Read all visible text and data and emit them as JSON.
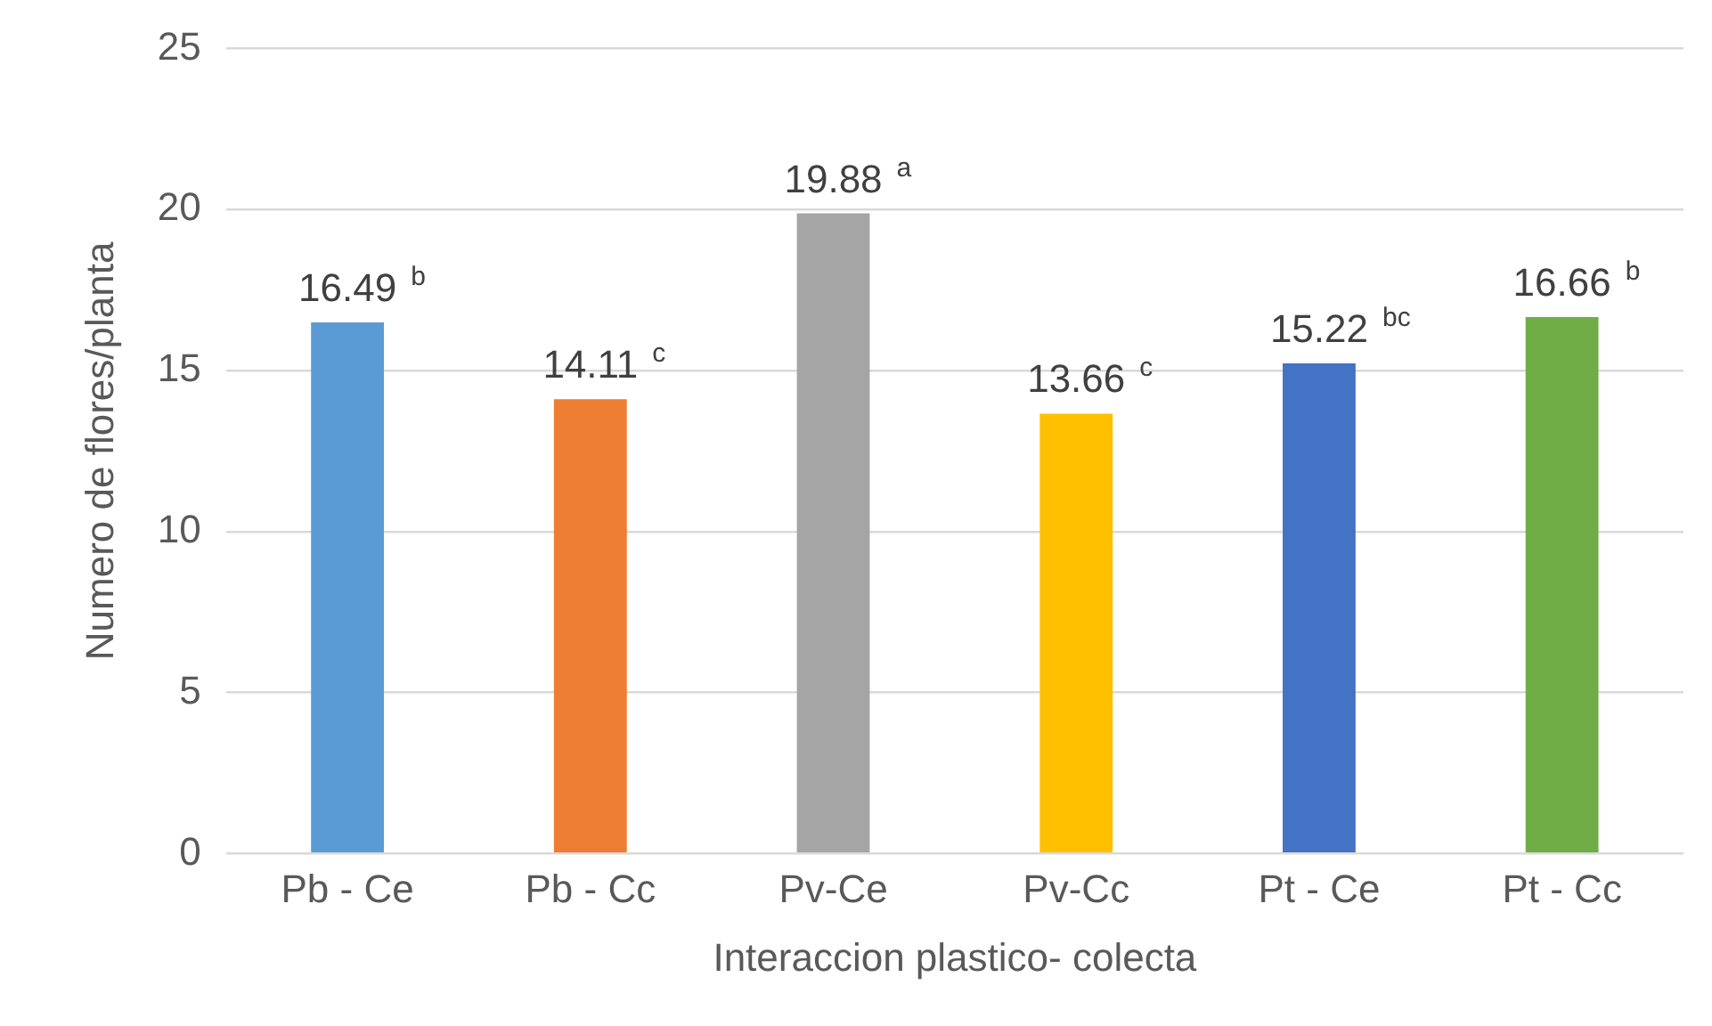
{
  "chart_data": {
    "type": "bar",
    "xlabel": "Interaccion plastico- colecta",
    "ylabel": "Numero de flores/planta",
    "categories": [
      "Pb - Ce",
      "Pb - Cc",
      "Pv-Ce",
      "Pv-Cc",
      "Pt - Ce",
      "Pt - Cc"
    ],
    "values": [
      16.49,
      14.11,
      19.88,
      13.66,
      15.22,
      16.66
    ],
    "colors": [
      "#5b9bd5",
      "#ed7d31",
      "#a5a5a5",
      "#ffc000",
      "#4472c4",
      "#70ad47"
    ],
    "value_labels": [
      "16.49 $^{b}$",
      "14.11 $^{c}$",
      "19.88 $^{a}$",
      "13.66 $^{c}$",
      "15.22 $^{bc}$",
      "16.66 $^{b}$"
    ],
    "ylim": [
      0,
      25
    ],
    "yticks": [
      0,
      5,
      10,
      15,
      20,
      25
    ],
    "grid": "y",
    "legend": false
  }
}
